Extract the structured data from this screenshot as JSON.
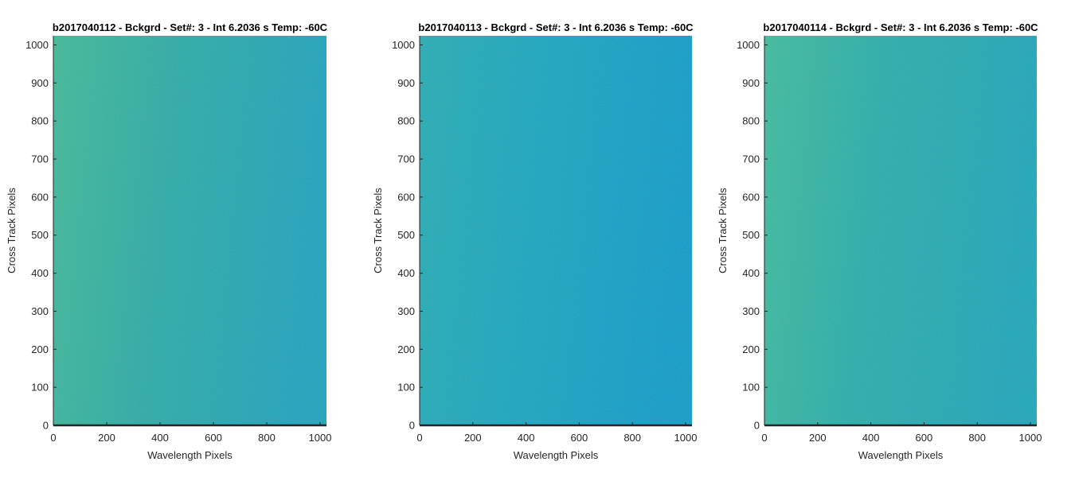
{
  "chart_data": [
    {
      "type": "heatmap",
      "title": "b2017040112 - Bckgrd - Set#: 3 - Int 6.2036 s Temp: -60C",
      "xlabel": "Wavelength Pixels",
      "ylabel": "Cross Track Pixels",
      "xlim": [
        0,
        1024
      ],
      "ylim": [
        0,
        1024
      ],
      "xticks": [
        0,
        200,
        400,
        600,
        800,
        1000
      ],
      "yticks": [
        0,
        100,
        200,
        300,
        400,
        500,
        600,
        700,
        800,
        900,
        1000
      ],
      "grid": false,
      "colors": {
        "dominant": "#2aa7a9",
        "brighter": "#3fb59a",
        "darker": "#1d9fc0"
      }
    },
    {
      "type": "heatmap",
      "title": "b2017040113 - Bckgrd - Set#: 3 - Int 6.2036 s Temp: -60C",
      "xlabel": "Wavelength Pixels",
      "ylabel": "Cross Track Pixels",
      "xlim": [
        0,
        1024
      ],
      "ylim": [
        0,
        1024
      ],
      "xticks": [
        0,
        200,
        400,
        600,
        800,
        1000
      ],
      "yticks": [
        0,
        100,
        200,
        300,
        400,
        500,
        600,
        700,
        800,
        900,
        1000
      ],
      "grid": false,
      "colors": {
        "dominant": "#18a2c2",
        "brighter": "#24a8b6",
        "darker": "#0f98cc"
      }
    },
    {
      "type": "heatmap",
      "title": "b2017040114 - Bckgrd - Set#: 3 - Int 6.2036 s Temp: -60C",
      "xlabel": "Wavelength Pixels",
      "ylabel": "Cross Track Pixels",
      "xlim": [
        0,
        1024
      ],
      "ylim": [
        0,
        1024
      ],
      "xticks": [
        0,
        200,
        400,
        600,
        800,
        1000
      ],
      "yticks": [
        0,
        100,
        200,
        300,
        400,
        500,
        600,
        700,
        800,
        900,
        1000
      ],
      "grid": false,
      "colors": {
        "dominant": "#26a9ad",
        "brighter": "#3db79f",
        "darker": "#1da2bd"
      }
    }
  ],
  "colors": {
    "axis": "#262626",
    "text": "#262626",
    "title": "#000000",
    "background": "#ffffff"
  }
}
